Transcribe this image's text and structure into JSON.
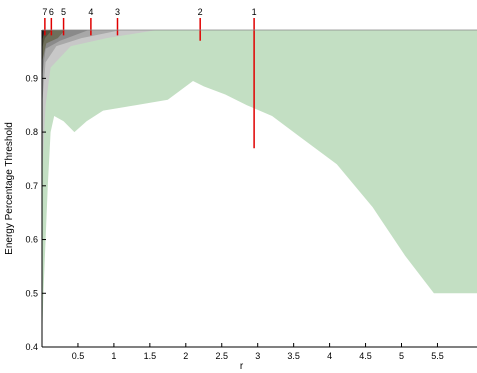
{
  "chart_data": {
    "type": "area",
    "xlabel": "r",
    "ylabel": "Energy Percentage  Threshold",
    "xlim": [
      0,
      6.05
    ],
    "ylim": [
      0.4,
      0.99
    ],
    "x_tick_labels": [
      "0.5",
      "1",
      "1.5",
      "2",
      "2.5",
      "3",
      "3.5",
      "4",
      "4.5",
      "5",
      "5.5"
    ],
    "x_ticks": [
      0.5,
      1,
      1.5,
      2,
      2.5,
      3,
      3.5,
      4,
      4.5,
      5,
      5.5
    ],
    "y_tick_labels": [
      "0.4",
      "0.5",
      "0.6",
      "0.7",
      "0.8",
      "0.9"
    ],
    "y_ticks": [
      0.4,
      0.5,
      0.6,
      0.7,
      0.8,
      0.9
    ],
    "colors": {
      "region_1": "#c3dfc3",
      "region_2": "#c8c8c8",
      "region_3": "#a8a8a8",
      "region_4": "#8a8a8a",
      "region_5": "#6e6e5a",
      "region_6": "#555540",
      "region_7": "#2a2a2a",
      "marker": "#e00000"
    },
    "series": [
      {
        "name": "1",
        "boundary": [
          {
            "x": 0.0,
            "y": 0.41
          },
          {
            "x": 0.02,
            "y": 0.5
          },
          {
            "x": 0.05,
            "y": 0.6
          },
          {
            "x": 0.08,
            "y": 0.7
          },
          {
            "x": 0.12,
            "y": 0.8
          },
          {
            "x": 0.17,
            "y": 0.83
          },
          {
            "x": 0.3,
            "y": 0.82
          },
          {
            "x": 0.45,
            "y": 0.8
          },
          {
            "x": 0.62,
            "y": 0.82
          },
          {
            "x": 0.85,
            "y": 0.84
          },
          {
            "x": 1.3,
            "y": 0.85
          },
          {
            "x": 1.75,
            "y": 0.86
          },
          {
            "x": 2.1,
            "y": 0.895
          },
          {
            "x": 2.25,
            "y": 0.885
          },
          {
            "x": 2.55,
            "y": 0.87
          },
          {
            "x": 2.85,
            "y": 0.85
          },
          {
            "x": 3.2,
            "y": 0.83
          },
          {
            "x": 3.6,
            "y": 0.79
          },
          {
            "x": 4.1,
            "y": 0.74
          },
          {
            "x": 4.6,
            "y": 0.66
          },
          {
            "x": 5.05,
            "y": 0.57
          },
          {
            "x": 5.45,
            "y": 0.5
          },
          {
            "x": 6.05,
            "y": 0.5
          }
        ]
      },
      {
        "name": "2",
        "boundary": [
          {
            "x": 0.0,
            "y": 0.72
          },
          {
            "x": 0.05,
            "y": 0.85
          },
          {
            "x": 0.12,
            "y": 0.92
          },
          {
            "x": 0.4,
            "y": 0.96
          },
          {
            "x": 0.9,
            "y": 0.975
          },
          {
            "x": 1.6,
            "y": 0.99
          }
        ]
      },
      {
        "name": "3",
        "boundary": [
          {
            "x": 0.0,
            "y": 0.85
          },
          {
            "x": 0.05,
            "y": 0.93
          },
          {
            "x": 0.2,
            "y": 0.96
          },
          {
            "x": 0.55,
            "y": 0.975
          },
          {
            "x": 1.1,
            "y": 0.99
          }
        ]
      },
      {
        "name": "4",
        "boundary": [
          {
            "x": 0.0,
            "y": 0.9
          },
          {
            "x": 0.05,
            "y": 0.955
          },
          {
            "x": 0.25,
            "y": 0.97
          },
          {
            "x": 0.65,
            "y": 0.99
          }
        ]
      },
      {
        "name": "5",
        "boundary": [
          {
            "x": 0.0,
            "y": 0.93
          },
          {
            "x": 0.06,
            "y": 0.965
          },
          {
            "x": 0.22,
            "y": 0.975
          },
          {
            "x": 0.32,
            "y": 0.99
          }
        ]
      },
      {
        "name": "6",
        "boundary": [
          {
            "x": 0.0,
            "y": 0.955
          },
          {
            "x": 0.04,
            "y": 0.975
          },
          {
            "x": 0.14,
            "y": 0.99
          }
        ]
      },
      {
        "name": "7",
        "boundary": [
          {
            "x": 0.0,
            "y": 0.97
          },
          {
            "x": 0.03,
            "y": 0.985
          },
          {
            "x": 0.06,
            "y": 0.99
          }
        ]
      }
    ],
    "markers": [
      {
        "label": "1",
        "x": 2.95,
        "y_low": 0.77
      },
      {
        "label": "2",
        "x": 2.2,
        "y_low": 0.97
      },
      {
        "label": "3",
        "x": 1.05,
        "y_low": 0.98
      },
      {
        "label": "4",
        "x": 0.68,
        "y_low": 0.98
      },
      {
        "label": "5",
        "x": 0.3,
        "y_low": 0.98
      },
      {
        "label": "6",
        "x": 0.13,
        "y_low": 0.98
      },
      {
        "label": "7",
        "x": 0.04,
        "y_low": 0.98
      }
    ]
  }
}
